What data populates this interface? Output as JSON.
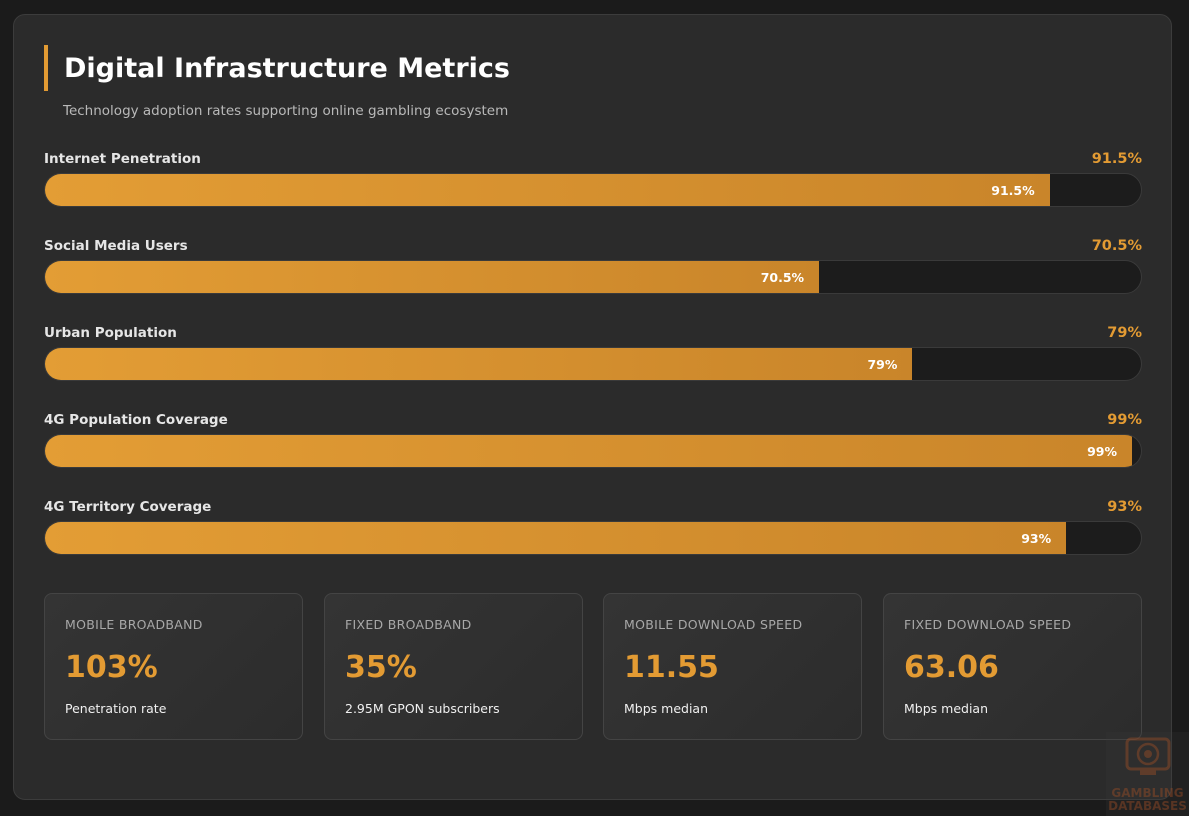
{
  "header": {
    "title": "Digital Infrastructure Metrics",
    "subtitle": "Technology adoption rates supporting online gambling ecosystem"
  },
  "chart_data": {
    "type": "bar",
    "orientation": "horizontal",
    "categories": [
      "Internet Penetration",
      "Social Media Users",
      "Urban Population",
      "4G Population Coverage",
      "4G Territory Coverage"
    ],
    "values": [
      91.5,
      70.5,
      79,
      99,
      93
    ],
    "value_labels": [
      "91.5%",
      "70.5%",
      "79%",
      "99%",
      "93%"
    ],
    "unit": "%",
    "xlim": [
      0,
      100
    ],
    "grid": false
  },
  "stats": [
    {
      "label": "MOBILE BROADBAND",
      "value": "103%",
      "desc": "Penetration rate"
    },
    {
      "label": "FIXED BROADBAND",
      "value": "35%",
      "desc": "2.95M GPON subscribers"
    },
    {
      "label": "MOBILE DOWNLOAD SPEED",
      "value": "11.55",
      "desc": "Mbps median"
    },
    {
      "label": "FIXED DOWNLOAD SPEED",
      "value": "63.06",
      "desc": "Mbps median"
    }
  ],
  "watermark": {
    "line1": "GAMBLING",
    "line2": "DATABASES",
    "icon": "monitor-chip-icon"
  },
  "colors": {
    "accent": "#e39b33",
    "background": "#2b2b2b",
    "track": "#1c1c1c"
  }
}
